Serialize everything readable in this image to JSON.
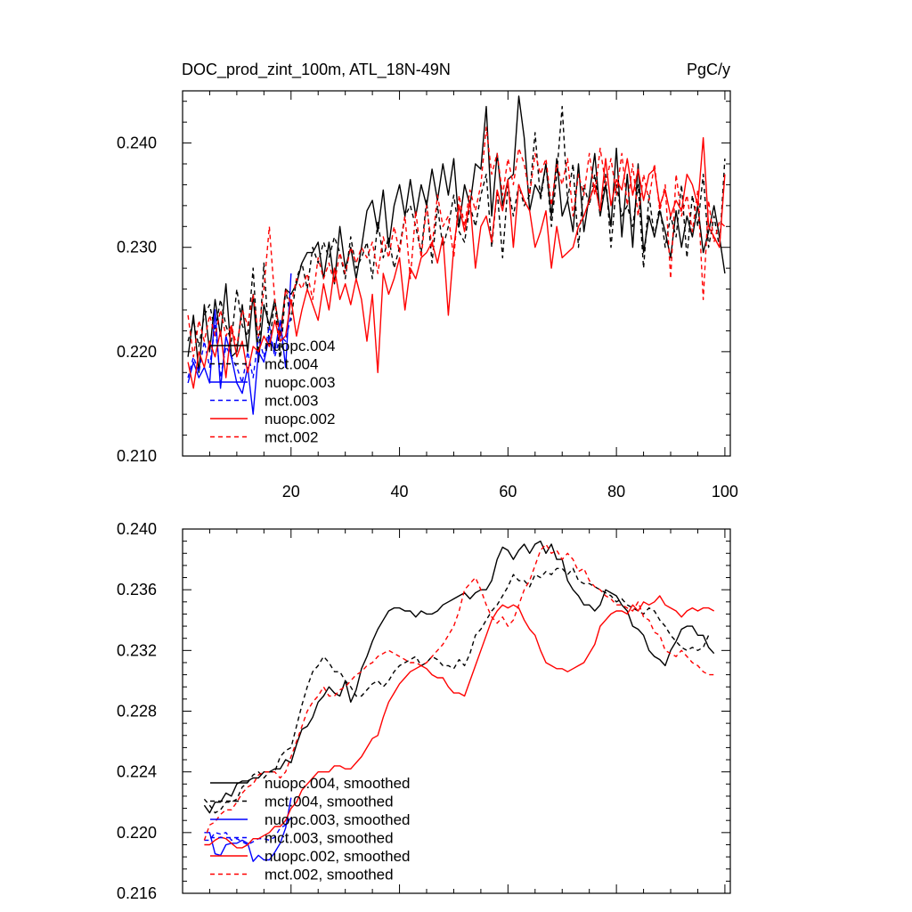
{
  "chart_data": [
    {
      "type": "line",
      "title": "DOC_prod_zint_100m, ATL_18N-49N",
      "units": "PgC/y",
      "xlim": [
        0,
        101
      ],
      "ylim": [
        0.21,
        0.245
      ],
      "xticks": [
        20,
        40,
        60,
        80,
        100
      ],
      "yticks": [
        0.21,
        0.22,
        0.23,
        0.24
      ],
      "ytick_labels": [
        "0.210",
        "0.220",
        "0.230",
        "0.240"
      ],
      "legend_position": "bottom-left",
      "series": [
        {
          "name": "nuopc.004",
          "color": "#000000",
          "dash": "solid",
          "x_start": 1,
          "values": [
            0.2195,
            0.2235,
            0.218,
            0.2245,
            0.22,
            0.225,
            0.2215,
            0.2265,
            0.2195,
            0.22,
            0.2245,
            0.22,
            0.2255,
            0.219,
            0.2245,
            0.2225,
            0.225,
            0.2215,
            0.226,
            0.2255,
            0.2265,
            0.2285,
            0.2295,
            0.2295,
            0.2305,
            0.227,
            0.2305,
            0.2265,
            0.232,
            0.228,
            0.23,
            0.227,
            0.23,
            0.2335,
            0.2345,
            0.2315,
            0.2355,
            0.23,
            0.234,
            0.236,
            0.233,
            0.2365,
            0.233,
            0.236,
            0.234,
            0.2375,
            0.2345,
            0.238,
            0.235,
            0.2385,
            0.232,
            0.236,
            0.234,
            0.238,
            0.2375,
            0.2435,
            0.233,
            0.239,
            0.234,
            0.2365,
            0.237,
            0.2445,
            0.2405,
            0.2335,
            0.236,
            0.235,
            0.238,
            0.233,
            0.2385,
            0.233,
            0.2345,
            0.2315,
            0.238,
            0.2315,
            0.235,
            0.239,
            0.233,
            0.236,
            0.232,
            0.2395,
            0.231,
            0.237,
            0.23,
            0.238,
            0.2295,
            0.233,
            0.231,
            0.2335,
            0.2315,
            0.229,
            0.2335,
            0.23,
            0.233,
            0.231,
            0.234,
            0.2295,
            0.2315,
            0.234,
            0.231,
            0.2275
          ]
        },
        {
          "name": "mct.004",
          "color": "#000000",
          "dash": "dashed",
          "x_start": 1,
          "values": [
            0.221,
            0.223,
            0.2205,
            0.2235,
            0.2245,
            0.222,
            0.225,
            0.2225,
            0.221,
            0.226,
            0.2225,
            0.2215,
            0.228,
            0.2195,
            0.2285,
            0.2205,
            0.225,
            0.219,
            0.226,
            0.223,
            0.227,
            0.2285,
            0.226,
            0.23,
            0.2285,
            0.2305,
            0.229,
            0.231,
            0.2295,
            0.227,
            0.231,
            0.228,
            0.229,
            0.2305,
            0.227,
            0.2325,
            0.229,
            0.231,
            0.228,
            0.23,
            0.233,
            0.234,
            0.232,
            0.2295,
            0.2345,
            0.2285,
            0.234,
            0.23,
            0.232,
            0.235,
            0.2315,
            0.2305,
            0.234,
            0.232,
            0.235,
            0.237,
            0.23,
            0.2355,
            0.229,
            0.236,
            0.233,
            0.236,
            0.234,
            0.235,
            0.241,
            0.2345,
            0.238,
            0.232,
            0.237,
            0.2435,
            0.2345,
            0.238,
            0.23,
            0.236,
            0.234,
            0.237,
            0.233,
            0.237,
            0.23,
            0.236,
            0.233,
            0.234,
            0.232,
            0.236,
            0.228,
            0.235,
            0.231,
            0.234,
            0.23,
            0.233,
            0.231,
            0.236,
            0.229,
            0.235,
            0.232,
            0.237,
            0.23,
            0.233,
            0.23,
            0.2385
          ]
        },
        {
          "name": "nuopc.003",
          "color": "#0000ff",
          "dash": "solid",
          "x_start": 1,
          "values": [
            0.217,
            0.219,
            0.2175,
            0.2185,
            0.217,
            0.224,
            0.2165,
            0.2215,
            0.2195,
            0.217,
            0.216,
            0.2185,
            0.214,
            0.22,
            0.219,
            0.2215,
            0.22,
            0.223,
            0.2185,
            0.2275
          ]
        },
        {
          "name": "mct.003",
          "color": "#0000ff",
          "dash": "dashed",
          "x_start": 1,
          "values": [
            0.2175,
            0.2195,
            0.218,
            0.221,
            0.2185,
            0.2225,
            0.2175,
            0.2205,
            0.2195,
            0.2185,
            0.217,
            0.22,
            0.2175,
            0.2215,
            0.2195,
            0.2225,
            0.2195,
            0.2215,
            0.221,
            0.2235
          ]
        },
        {
          "name": "nuopc.002",
          "color": "#ff0000",
          "dash": "solid",
          "x_start": 1,
          "values": [
            0.219,
            0.2165,
            0.22,
            0.2185,
            0.221,
            0.2195,
            0.222,
            0.2175,
            0.2225,
            0.2195,
            0.221,
            0.218,
            0.2205,
            0.22,
            0.2215,
            0.2205,
            0.223,
            0.221,
            0.2215,
            0.225,
            0.2215,
            0.224,
            0.226,
            0.2245,
            0.223,
            0.2265,
            0.224,
            0.228,
            0.225,
            0.2265,
            0.2245,
            0.227,
            0.225,
            0.221,
            0.2255,
            0.218,
            0.2275,
            0.2255,
            0.227,
            0.229,
            0.224,
            0.228,
            0.227,
            0.229,
            0.2295,
            0.2305,
            0.2285,
            0.231,
            0.2235,
            0.23,
            0.234,
            0.2315,
            0.2345,
            0.228,
            0.232,
            0.233,
            0.2305,
            0.2355,
            0.2335,
            0.2365,
            0.23,
            0.236,
            0.2345,
            0.2335,
            0.23,
            0.2315,
            0.2335,
            0.228,
            0.232,
            0.229,
            0.2295,
            0.23,
            0.232,
            0.233,
            0.2345,
            0.236,
            0.2335,
            0.2385,
            0.234,
            0.2365,
            0.2355,
            0.2385,
            0.235,
            0.2375,
            0.2345,
            0.237,
            0.2375,
            0.234,
            0.2355,
            0.233,
            0.2345,
            0.2335,
            0.237,
            0.236,
            0.234,
            0.2405,
            0.232,
            0.231,
            0.23,
            0.237
          ]
        },
        {
          "name": "mct.002",
          "color": "#ff0000",
          "dash": "dashed",
          "x_start": 1,
          "values": [
            0.2235,
            0.2195,
            0.223,
            0.221,
            0.2235,
            0.2215,
            0.224,
            0.2215,
            0.2225,
            0.2205,
            0.224,
            0.2225,
            0.2255,
            0.2215,
            0.226,
            0.232,
            0.225,
            0.221,
            0.226,
            0.2245,
            0.227,
            0.226,
            0.2275,
            0.225,
            0.229,
            0.227,
            0.2285,
            0.2265,
            0.2295,
            0.2275,
            0.23,
            0.2285,
            0.23,
            0.229,
            0.2305,
            0.2275,
            0.231,
            0.229,
            0.232,
            0.2295,
            0.233,
            0.227,
            0.2335,
            0.229,
            0.234,
            0.23,
            0.235,
            0.232,
            0.233,
            0.229,
            0.235,
            0.232,
            0.2355,
            0.2335,
            0.236,
            0.2415,
            0.237,
            0.239,
            0.235,
            0.2385,
            0.236,
            0.2395,
            0.238,
            0.235,
            0.239,
            0.237,
            0.2385,
            0.234,
            0.238,
            0.236,
            0.2385,
            0.233,
            0.237,
            0.235,
            0.239,
            0.235,
            0.2395,
            0.236,
            0.2385,
            0.235,
            0.239,
            0.234,
            0.238,
            0.233,
            0.237,
            0.2345,
            0.238,
            0.2335,
            0.236,
            0.227,
            0.237,
            0.233,
            0.235,
            0.2315,
            0.2355,
            0.225,
            0.2345,
            0.2305,
            0.2325,
            0.232
          ]
        }
      ]
    },
    {
      "type": "line",
      "xlim": [
        0,
        101
      ],
      "ylim": [
        0.216,
        0.24
      ],
      "xticks": [
        20,
        40,
        60,
        80,
        100
      ],
      "yticks": [
        0.216,
        0.22,
        0.224,
        0.228,
        0.232,
        0.236,
        0.24
      ],
      "ytick_labels": [
        "0.216",
        "0.220",
        "0.224",
        "0.228",
        "0.232",
        "0.236",
        "0.240"
      ],
      "legend_position": "bottom-left",
      "series": [
        {
          "name": "nuopc.004, smoothed",
          "color": "#000000",
          "dash": "solid",
          "x_start": 4,
          "values": [
            0.2218,
            0.2213,
            0.222,
            0.222,
            0.2226,
            0.2224,
            0.2232,
            0.2234,
            0.2234,
            0.2236,
            0.2236,
            0.224,
            0.224,
            0.2242,
            0.2242,
            0.2248,
            0.2246,
            0.2258,
            0.2268,
            0.227,
            0.2276,
            0.2286,
            0.229,
            0.2296,
            0.2292,
            0.229,
            0.23,
            0.2286,
            0.2294,
            0.2308,
            0.2316,
            0.2326,
            0.2334,
            0.234,
            0.2346,
            0.2348,
            0.2348,
            0.2346,
            0.2346,
            0.2342,
            0.2346,
            0.2344,
            0.2344,
            0.2346,
            0.235,
            0.2352,
            0.2354,
            0.2356,
            0.2358,
            0.2354,
            0.2358,
            0.236,
            0.236,
            0.2366,
            0.238,
            0.2388,
            0.2386,
            0.238,
            0.2386,
            0.239,
            0.2384,
            0.239,
            0.2392,
            0.2384,
            0.239,
            0.238,
            0.238,
            0.2366,
            0.236,
            0.2356,
            0.235,
            0.235,
            0.2346,
            0.235,
            0.236,
            0.2358,
            0.2356,
            0.235,
            0.2346,
            0.2336,
            0.2334,
            0.233,
            0.232,
            0.2316,
            0.2314,
            0.231,
            0.232,
            0.2326,
            0.2334,
            0.2336,
            0.2336,
            0.233,
            0.233,
            0.2322,
            0.2318
          ]
        },
        {
          "name": "mct.004, smoothed",
          "color": "#000000",
          "dash": "dashed",
          "x_start": 4,
          "values": [
            0.2222,
            0.2218,
            0.2213,
            0.2215,
            0.222,
            0.222,
            0.2222,
            0.223,
            0.2233,
            0.2238,
            0.224,
            0.2236,
            0.224,
            0.224,
            0.225,
            0.2254,
            0.2256,
            0.227,
            0.2284,
            0.2296,
            0.2306,
            0.231,
            0.2316,
            0.2312,
            0.2306,
            0.2306,
            0.23,
            0.2296,
            0.229,
            0.229,
            0.2294,
            0.2298,
            0.23,
            0.2296,
            0.23,
            0.2306,
            0.231,
            0.2312,
            0.2314,
            0.2316,
            0.231,
            0.2312,
            0.2316,
            0.2314,
            0.231,
            0.231,
            0.2308,
            0.2314,
            0.231,
            0.2318,
            0.233,
            0.2334,
            0.234,
            0.2346,
            0.235,
            0.2356,
            0.2362,
            0.237,
            0.2366,
            0.2366,
            0.2362,
            0.237,
            0.2368,
            0.2372,
            0.237,
            0.2374,
            0.2374,
            0.237,
            0.2374,
            0.2366,
            0.2364,
            0.2364,
            0.2362,
            0.236,
            0.2358,
            0.2356,
            0.2352,
            0.2354,
            0.235,
            0.2348,
            0.2346,
            0.2344,
            0.2348,
            0.2346,
            0.234,
            0.2336,
            0.233,
            0.2326,
            0.2322,
            0.232,
            0.2322,
            0.232,
            0.2322,
            0.233
          ]
        },
        {
          "name": "nuopc.003, smoothed",
          "color": "#0000ff",
          "dash": "solid",
          "x_start": 4,
          "values": [
            0.22,
            0.22,
            0.2186,
            0.2185,
            0.2192,
            0.2193,
            0.2193,
            0.2195,
            0.2193,
            0.2181,
            0.2185,
            0.2182,
            0.2182,
            0.2187,
            0.2193,
            0.2203,
            0.2223
          ]
        },
        {
          "name": "mct.003, smoothed",
          "color": "#0000ff",
          "dash": "dashed",
          "x_start": 4,
          "values": [
            0.2195,
            0.2195,
            0.22,
            0.2199,
            0.22,
            0.2195,
            0.2196,
            0.2194,
            0.2192,
            0.2194,
            0.2196,
            0.2196,
            0.2195,
            0.2197,
            0.2203,
            0.2205,
            0.221
          ]
        },
        {
          "name": "nuopc.002, smoothed",
          "color": "#ff0000",
          "dash": "solid",
          "x_start": 4,
          "values": [
            0.2192,
            0.2192,
            0.2195,
            0.2197,
            0.2196,
            0.2193,
            0.219,
            0.219,
            0.2192,
            0.2196,
            0.2196,
            0.2198,
            0.22,
            0.2204,
            0.2204,
            0.2208,
            0.2216,
            0.222,
            0.2228,
            0.2232,
            0.2236,
            0.224,
            0.224,
            0.224,
            0.2244,
            0.2244,
            0.2242,
            0.2242,
            0.2246,
            0.225,
            0.2256,
            0.2262,
            0.2264,
            0.2276,
            0.2286,
            0.2292,
            0.2298,
            0.2302,
            0.2306,
            0.2308,
            0.231,
            0.2308,
            0.2304,
            0.2302,
            0.2302,
            0.2296,
            0.2292,
            0.2292,
            0.229,
            0.23,
            0.231,
            0.232,
            0.233,
            0.234,
            0.2346,
            0.235,
            0.2348,
            0.235,
            0.2348,
            0.234,
            0.2334,
            0.233,
            0.232,
            0.2312,
            0.231,
            0.2308,
            0.2308,
            0.2306,
            0.2308,
            0.231,
            0.2312,
            0.2318,
            0.2324,
            0.2336,
            0.234,
            0.2344,
            0.2346,
            0.2346,
            0.2344,
            0.235,
            0.2346,
            0.2352,
            0.235,
            0.2352,
            0.2356,
            0.235,
            0.2348,
            0.2346,
            0.2342,
            0.2346,
            0.2348,
            0.2346,
            0.2348,
            0.2348,
            0.2346
          ]
        },
        {
          "name": "mct.002, smoothed",
          "color": "#ff0000",
          "dash": "dashed",
          "x_start": 4,
          "values": [
            0.2195,
            0.2205,
            0.2207,
            0.2212,
            0.2215,
            0.2215,
            0.222,
            0.2226,
            0.223,
            0.2232,
            0.2238,
            0.224,
            0.224,
            0.224,
            0.2236,
            0.224,
            0.225,
            0.226,
            0.227,
            0.228,
            0.2286,
            0.229,
            0.2296,
            0.229,
            0.229,
            0.2294,
            0.2296,
            0.23,
            0.2304,
            0.2306,
            0.231,
            0.2312,
            0.2316,
            0.2318,
            0.232,
            0.2318,
            0.2316,
            0.2314,
            0.2312,
            0.2312,
            0.231,
            0.2312,
            0.2316,
            0.232,
            0.2324,
            0.233,
            0.2336,
            0.2346,
            0.236,
            0.2364,
            0.2368,
            0.236,
            0.235,
            0.2342,
            0.2338,
            0.2342,
            0.2336,
            0.234,
            0.235,
            0.236,
            0.2366,
            0.2376,
            0.2386,
            0.239,
            0.2384,
            0.2386,
            0.238,
            0.2384,
            0.238,
            0.2372,
            0.2374,
            0.2366,
            0.2362,
            0.236,
            0.2356,
            0.2354,
            0.235,
            0.235,
            0.2348,
            0.2346,
            0.2352,
            0.2342,
            0.234,
            0.2332,
            0.233,
            0.232,
            0.2318,
            0.2316,
            0.232,
            0.2316,
            0.2312,
            0.231,
            0.2306,
            0.2304,
            0.2304
          ]
        }
      ]
    }
  ]
}
